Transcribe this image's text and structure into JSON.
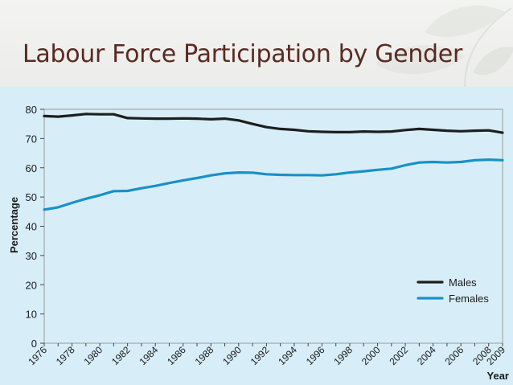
{
  "slide": {
    "title": "Labour Force Participation by Gender"
  },
  "chart_data": {
    "type": "line",
    "xlabel": "Year",
    "ylabel": "Percentage",
    "ylim": [
      0,
      80
    ],
    "xlim": [
      1976,
      2009
    ],
    "yticks": [
      0,
      10,
      20,
      30,
      40,
      50,
      60,
      70,
      80
    ],
    "xticks": [
      "1976",
      "1978",
      "1980",
      "1982",
      "1984",
      "1986",
      "1988",
      "1990",
      "1992",
      "1994",
      "1996",
      "1998",
      "2000",
      "2002",
      "2004",
      "2006",
      "2008",
      "2009"
    ],
    "legend_position": "bottom-right",
    "x": [
      1976,
      1977,
      1978,
      1979,
      1980,
      1981,
      1982,
      1983,
      1984,
      1985,
      1986,
      1987,
      1988,
      1989,
      1990,
      1991,
      1992,
      1993,
      1994,
      1995,
      1996,
      1997,
      1998,
      1999,
      2000,
      2001,
      2002,
      2003,
      2004,
      2005,
      2006,
      2007,
      2008,
      2009
    ],
    "series": [
      {
        "name": "Males",
        "color": "#1e1e1e",
        "values": [
          77.7,
          77.5,
          77.9,
          78.4,
          78.3,
          78.3,
          77.0,
          76.9,
          76.8,
          76.8,
          76.9,
          76.8,
          76.6,
          76.8,
          76.2,
          75.0,
          73.9,
          73.3,
          73.0,
          72.5,
          72.3,
          72.2,
          72.2,
          72.4,
          72.3,
          72.4,
          72.9,
          73.3,
          73.0,
          72.7,
          72.5,
          72.7,
          72.8,
          72.0
        ]
      },
      {
        "name": "Females",
        "color": "#1a90c8",
        "values": [
          45.7,
          46.5,
          48.0,
          49.4,
          50.6,
          52.0,
          52.1,
          53.0,
          53.8,
          54.8,
          55.7,
          56.5,
          57.4,
          58.1,
          58.4,
          58.3,
          57.8,
          57.6,
          57.5,
          57.5,
          57.4,
          57.8,
          58.4,
          58.8,
          59.3,
          59.7,
          60.9,
          61.8,
          62.0,
          61.8,
          62.0,
          62.6,
          62.8,
          62.6
        ]
      }
    ]
  }
}
